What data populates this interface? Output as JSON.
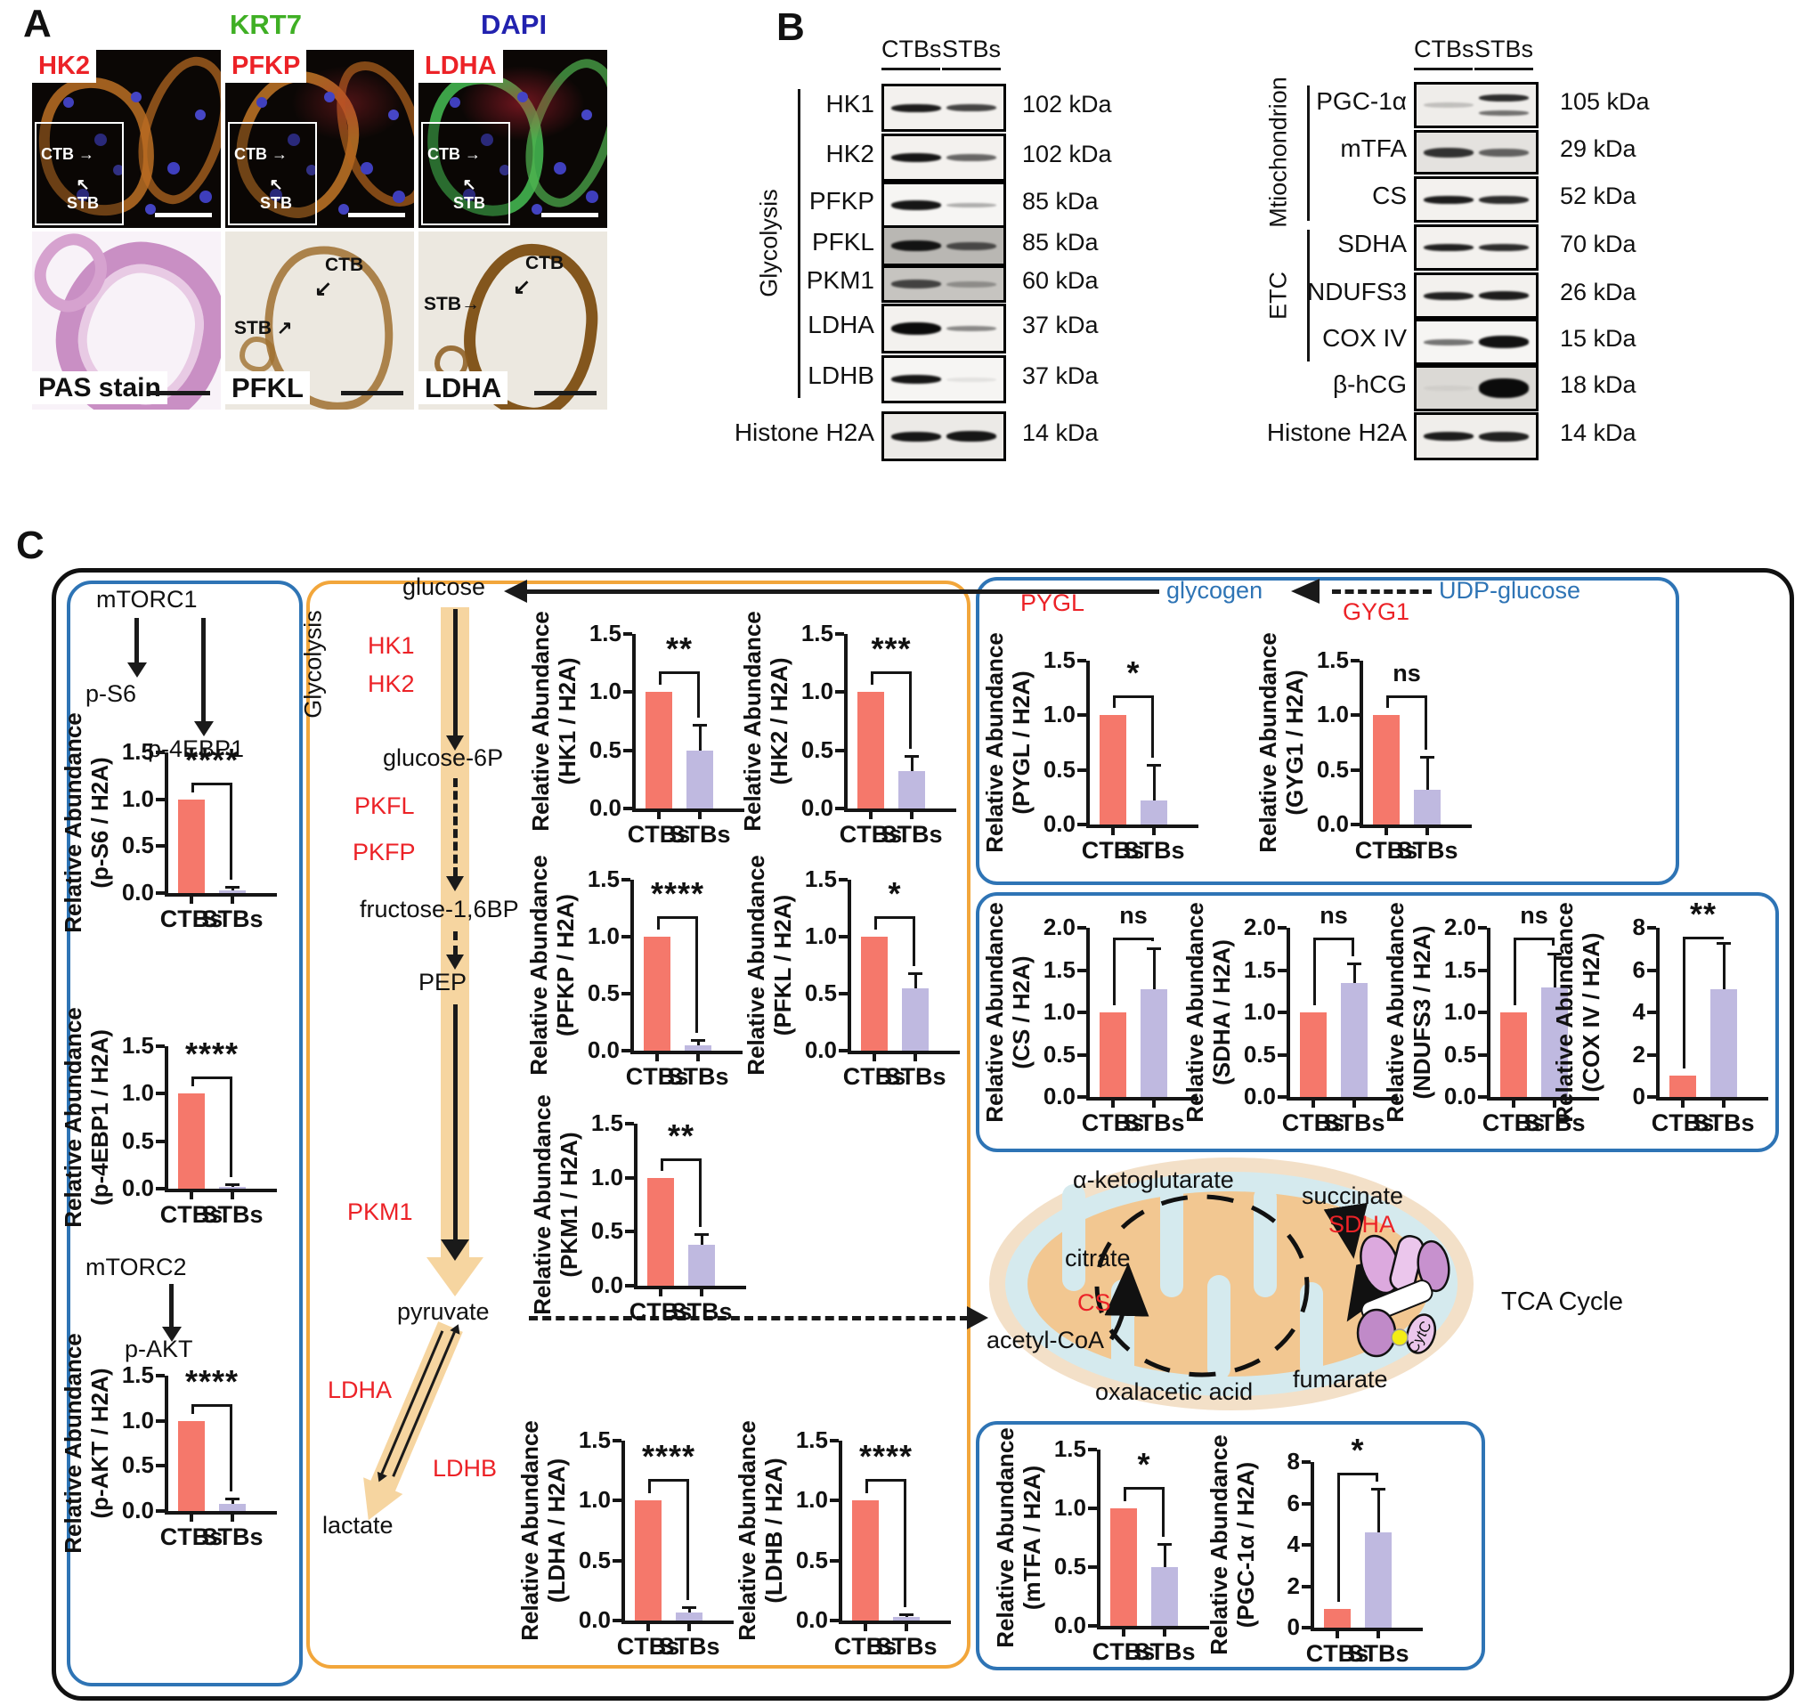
{
  "panel_a": {
    "label": "A",
    "costain_green": "KRT7",
    "costain_blue": "DAPI",
    "if_markers": [
      "HK2",
      "PFKP",
      "LDHA"
    ],
    "cell_labels": {
      "ctb": "CTB",
      "stb": "STB"
    },
    "hist_labels": [
      "PAS stain",
      "PFKL",
      "LDHA"
    ]
  },
  "panel_b": {
    "label": "B",
    "col_headers": [
      "CTBs",
      "STBs"
    ],
    "left_group": {
      "bracket": "Glycolysis",
      "rows": [
        {
          "name": "HK1",
          "kda": "102 kDa",
          "ctb": [
            0.92,
            9
          ],
          "stb": [
            0.75,
            8
          ],
          "bg": "#f3f1ee"
        },
        {
          "name": "HK2",
          "kda": "102 kDa",
          "ctb": [
            0.95,
            10
          ],
          "stb": [
            0.6,
            8
          ],
          "bg": "#f3f1ee"
        },
        {
          "name": "PFKP",
          "kda": "85 kDa",
          "ctb": [
            0.95,
            11
          ],
          "stb": [
            0.3,
            5
          ],
          "bg": "#f6f5f3"
        },
        {
          "name": "PFKL",
          "kda": "85 kDa",
          "ctb": [
            0.95,
            12
          ],
          "stb": [
            0.65,
            9
          ],
          "bg": "#b9b7b3"
        },
        {
          "name": "PKM1",
          "kda": "60 kDa",
          "ctb": [
            0.7,
            10
          ],
          "stb": [
            0.3,
            7
          ],
          "bg": "#c6c4c0"
        },
        {
          "name": "LDHA",
          "kda": "37 kDa",
          "ctb": [
            1.0,
            14
          ],
          "stb": [
            0.45,
            6
          ],
          "bg": "#f3f1ee"
        },
        {
          "name": "LDHB",
          "kda": "37 kDa",
          "ctb": [
            0.95,
            10
          ],
          "stb": [
            0.08,
            5
          ],
          "bg": "#f6f5f3"
        },
        {
          "name": "Histone H2A",
          "kda": "14 kDa",
          "ctb": [
            0.95,
            11
          ],
          "stb": [
            0.95,
            12
          ],
          "bg": "#eceae7"
        }
      ]
    },
    "right_group": {
      "brackets": [
        {
          "name": "Mtiochondrion"
        },
        {
          "name": "ETC"
        }
      ],
      "rows": [
        {
          "name": "PGC-1α",
          "kda": "105 kDa",
          "ctb": [
            0.2,
            6
          ],
          "stb": [
            0.85,
            8
          ],
          "stb2": [
            0.55,
            6
          ],
          "bg": "#efedea"
        },
        {
          "name": "mTFA",
          "kda": "29 kDa",
          "ctb": [
            0.82,
            11
          ],
          "stb": [
            0.6,
            9
          ],
          "bg": "#e4e2df"
        },
        {
          "name": "CS",
          "kda": "52 kDa",
          "ctb": [
            0.92,
            9
          ],
          "stb": [
            0.85,
            9
          ],
          "bg": "#f3f1ee"
        },
        {
          "name": "SDHA",
          "kda": "70 kDa",
          "ctb": [
            0.9,
            8
          ],
          "stb": [
            0.85,
            8
          ],
          "bg": "#f3f1ee"
        },
        {
          "name": "NDUFS3",
          "kda": "26 kDa",
          "ctb": [
            0.9,
            9
          ],
          "stb": [
            0.92,
            10
          ],
          "bg": "#f3f1ee"
        },
        {
          "name": "COX IV",
          "kda": "15 kDa",
          "ctb": [
            0.55,
            7
          ],
          "stb": [
            0.97,
            14
          ],
          "bg": "#f6f5f3"
        },
        {
          "name": "β-hCG",
          "kda": "18 kDa",
          "ctb": [
            0.05,
            6
          ],
          "stb": [
            1.0,
            22
          ],
          "bg": "#dbd9d5"
        },
        {
          "name": "Histone H2A",
          "kda": "14 kDa",
          "ctb": [
            0.92,
            10
          ],
          "stb": [
            0.9,
            11
          ],
          "bg": "#f0eeeb"
        }
      ]
    }
  },
  "panel_c": {
    "label": "C",
    "mtor": {
      "mtorc1": "mTORC1",
      "p_s6": "p-S6",
      "p_4ebp1": "p-4EBP1",
      "mtorc2": "mTORC2",
      "p_akt": "p-AKT"
    },
    "glycolysis": {
      "title": "Glycolysis",
      "glucose": "glucose",
      "hk1": "HK1",
      "hk2": "HK2",
      "glucose6p": "glucose-6P",
      "pkfl": "PKFL",
      "pkfp": "PKFP",
      "fructose": "fructose-1,6BP",
      "pep": "PEP",
      "pkm1": "PKM1",
      "pyruvate": "pyruvate",
      "ldha": "LDHA",
      "ldhb": "LDHB",
      "lactate": "lactate"
    },
    "glycogen": {
      "pygl": "PYGL",
      "glycogen": "glycogen",
      "gyg1": "GYG1",
      "udp_glucose": "UDP-glucose"
    },
    "tca": {
      "alpha_kg": "α-ketoglutarate",
      "succinate": "succinate",
      "sdha": "SDHA",
      "citrate": "citrate",
      "cs": "CS",
      "acetyl_coa": "acetyl-CoA",
      "oxalacetic": "oxalacetic acid",
      "fumarate": "fumarate",
      "title": "TCA Cycle",
      "cytc": "CytC"
    }
  },
  "chart_data": [
    {
      "id": "ps6",
      "type": "bar",
      "categories": [
        "CTBs",
        "STBs"
      ],
      "values": [
        1.0,
        0.03
      ],
      "errors": [
        null,
        0.07
      ],
      "ylabel": [
        "Relative Abundance",
        "(p-S6 / H2A)"
      ],
      "ylim": [
        0,
        1.5
      ],
      "yticks": [
        "0.0",
        "0.5",
        "1.0",
        "1.5"
      ],
      "sig": "****",
      "sig_y": 1.18
    },
    {
      "id": "p4ebp1",
      "type": "bar",
      "categories": [
        "CTBs",
        "STBs"
      ],
      "values": [
        1.0,
        0.02
      ],
      "errors": [
        null,
        0.05
      ],
      "ylabel": [
        "Relative Abundance",
        "(p-4EBP1 / H2A)"
      ],
      "ylim": [
        0,
        1.5
      ],
      "yticks": [
        "0.0",
        "0.5",
        "1.0",
        "1.5"
      ],
      "sig": "****",
      "sig_y": 1.18
    },
    {
      "id": "pakt",
      "type": "bar",
      "categories": [
        "CTBs",
        "STBs"
      ],
      "values": [
        1.0,
        0.08
      ],
      "errors": [
        null,
        0.14
      ],
      "ylabel": [
        "Relative Abundance",
        "(p-AKT / H2A)"
      ],
      "ylim": [
        0,
        1.5
      ],
      "yticks": [
        "0.0",
        "0.5",
        "1.0",
        "1.5"
      ],
      "sig": "****",
      "sig_y": 1.18
    },
    {
      "id": "hk1",
      "type": "bar",
      "categories": [
        "CTBs",
        "STBs"
      ],
      "values": [
        1.0,
        0.5
      ],
      "errors": [
        null,
        0.72
      ],
      "ylabel": [
        "Relative Abundance",
        "(HK1 / H2A)"
      ],
      "ylim": [
        0,
        1.5
      ],
      "yticks": [
        "0.0",
        "0.5",
        "1.0",
        "1.5"
      ],
      "sig": "**",
      "sig_y": 1.18
    },
    {
      "id": "hk2",
      "type": "bar",
      "categories": [
        "CTBs",
        "STBs"
      ],
      "values": [
        1.0,
        0.32
      ],
      "errors": [
        null,
        0.45
      ],
      "ylabel": [
        "Relative Abundance",
        "(HK2 / H2A)"
      ],
      "ylim": [
        0,
        1.5
      ],
      "yticks": [
        "0.0",
        "0.5",
        "1.0",
        "1.5"
      ],
      "sig": "***",
      "sig_y": 1.18
    },
    {
      "id": "pfkp",
      "type": "bar",
      "categories": [
        "CTBs",
        "STBs"
      ],
      "values": [
        1.0,
        0.05
      ],
      "errors": [
        null,
        0.09
      ],
      "ylabel": [
        "Relative Abundance",
        "(PFKP / H2A)"
      ],
      "ylim": [
        0,
        1.5
      ],
      "yticks": [
        "0.0",
        "0.5",
        "1.0",
        "1.5"
      ],
      "sig": "****",
      "sig_y": 1.18
    },
    {
      "id": "pfkl",
      "type": "bar",
      "categories": [
        "CTBs",
        "STBs"
      ],
      "values": [
        1.0,
        0.55
      ],
      "errors": [
        null,
        0.68
      ],
      "ylabel": [
        "Relative Abundance",
        "(PFKL / H2A)"
      ],
      "ylim": [
        0,
        1.5
      ],
      "yticks": [
        "0.0",
        "0.5",
        "1.0",
        "1.5"
      ],
      "sig": "*",
      "sig_y": 1.18
    },
    {
      "id": "pkm1",
      "type": "bar",
      "categories": [
        "CTBs",
        "STBs"
      ],
      "values": [
        1.0,
        0.38
      ],
      "errors": [
        null,
        0.48
      ],
      "ylabel": [
        "Relative Abundance",
        "(PKM1 / H2A)"
      ],
      "ylim": [
        0,
        1.5
      ],
      "yticks": [
        "0.0",
        "0.5",
        "1.0",
        "1.5"
      ],
      "sig": "**",
      "sig_y": 1.18
    },
    {
      "id": "ldha",
      "type": "bar",
      "categories": [
        "CTBs",
        "STBs"
      ],
      "values": [
        1.0,
        0.07
      ],
      "errors": [
        null,
        0.11
      ],
      "ylabel": [
        "Relative Abundance",
        "(LDHA / H2A)"
      ],
      "ylim": [
        0,
        1.5
      ],
      "yticks": [
        "0.0",
        "0.5",
        "1.0",
        "1.5"
      ],
      "sig": "****",
      "sig_y": 1.18
    },
    {
      "id": "ldhb",
      "type": "bar",
      "categories": [
        "CTBs",
        "STBs"
      ],
      "values": [
        1.0,
        0.03
      ],
      "errors": [
        null,
        0.05
      ],
      "ylabel": [
        "Relative Abundance",
        "(LDHB / H2A)"
      ],
      "ylim": [
        0,
        1.5
      ],
      "yticks": [
        "0.0",
        "0.5",
        "1.0",
        "1.5"
      ],
      "sig": "****",
      "sig_y": 1.18
    },
    {
      "id": "pygl",
      "type": "bar",
      "categories": [
        "CTBs",
        "STBs"
      ],
      "values": [
        1.0,
        0.22
      ],
      "errors": [
        null,
        0.55
      ],
      "ylabel": [
        "Relative Abundance",
        "(PYGL / H2A)"
      ],
      "ylim": [
        0,
        1.5
      ],
      "yticks": [
        "0.0",
        "0.5",
        "1.0",
        "1.5"
      ],
      "sig": "*",
      "sig_y": 1.18
    },
    {
      "id": "gyg1",
      "type": "bar",
      "categories": [
        "CTBs",
        "STBs"
      ],
      "values": [
        1.0,
        0.32
      ],
      "errors": [
        null,
        0.62
      ],
      "ylabel": [
        "Relative Abundance",
        "(GYG1 / H2A)"
      ],
      "ylim": [
        0,
        1.5
      ],
      "yticks": [
        "0.0",
        "0.5",
        "1.0",
        "1.5"
      ],
      "sig": "ns",
      "sig_y": 1.18
    },
    {
      "id": "cs",
      "type": "bar",
      "categories": [
        "CTBs",
        "STBs"
      ],
      "values": [
        1.0,
        1.27
      ],
      "errors": [
        null,
        1.76
      ],
      "ylabel": [
        "Relative Abundance",
        "(CS / H2A)"
      ],
      "ylim": [
        0,
        2.0
      ],
      "yticks": [
        "0.0",
        "0.5",
        "1.0",
        "1.5",
        "2.0"
      ],
      "sig": "ns",
      "sig_y": 1.88
    },
    {
      "id": "sdha",
      "type": "bar",
      "categories": [
        "CTBs",
        "STBs"
      ],
      "values": [
        1.0,
        1.35
      ],
      "errors": [
        null,
        1.58
      ],
      "ylabel": [
        "Relative Abundance",
        "(SDHA / H2A)"
      ],
      "ylim": [
        0,
        2.0
      ],
      "yticks": [
        "0.0",
        "0.5",
        "1.0",
        "1.5",
        "2.0"
      ],
      "sig": "ns",
      "sig_y": 1.88
    },
    {
      "id": "ndufs3",
      "type": "bar",
      "categories": [
        "CTBs",
        "STBs"
      ],
      "values": [
        1.0,
        1.3
      ],
      "errors": [
        null,
        1.7
      ],
      "ylabel": [
        "Relative Abundance",
        "(NDUFS3 / H2A)"
      ],
      "ylim": [
        0,
        2.0
      ],
      "yticks": [
        "0.0",
        "0.5",
        "1.0",
        "1.5",
        "2.0"
      ],
      "sig": "ns",
      "sig_y": 1.88
    },
    {
      "id": "cox4",
      "type": "bar",
      "categories": [
        "CTBs",
        "STBs"
      ],
      "values": [
        1.0,
        5.1
      ],
      "errors": [
        null,
        7.3
      ],
      "ylabel": [
        "Relative Abundance",
        "(COX IV / H2A)"
      ],
      "ylim": [
        0,
        8
      ],
      "yticks": [
        "0",
        "2",
        "4",
        "6",
        "8"
      ],
      "sig": "**",
      "sig_y": 7.6
    },
    {
      "id": "mtfa",
      "type": "bar",
      "categories": [
        "CTBs",
        "STBs"
      ],
      "values": [
        1.0,
        0.5
      ],
      "errors": [
        null,
        0.7
      ],
      "ylabel": [
        "Relative Abundance",
        "(mTFA / H2A)"
      ],
      "ylim": [
        0,
        1.5
      ],
      "yticks": [
        "0.0",
        "0.5",
        "1.0",
        "1.5"
      ],
      "sig": "*",
      "sig_y": 1.18
    },
    {
      "id": "pgc1a",
      "type": "bar",
      "categories": [
        "CTBs",
        "STBs"
      ],
      "values": [
        0.9,
        4.6
      ],
      "errors": [
        null,
        6.7
      ],
      "ylabel": [
        "Relative Abundance",
        "(PGC-1α / H2A)"
      ],
      "ylim": [
        0,
        8
      ],
      "yticks": [
        "0",
        "2",
        "4",
        "6",
        "8"
      ],
      "sig": "*",
      "sig_y": 7.5
    }
  ],
  "colors": {
    "ctb_bar": "#F5786B",
    "stb_bar": "#BFB9E0",
    "red_text": "#EC2227",
    "blue_text": "#2E74B5",
    "green_text": "#3FAF24",
    "dapi_blue": "#2222AF",
    "blue_box": "#2E74B5",
    "orange_box": "#F2A63B",
    "tan_band": "#F6D5A0"
  }
}
